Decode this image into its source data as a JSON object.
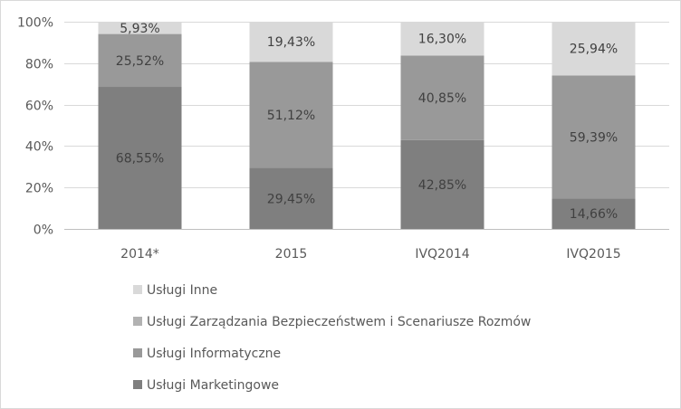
{
  "chart_data": {
    "type": "bar",
    "stacked": true,
    "percent": true,
    "categories": [
      "2014*",
      "2015",
      "IVQ2014",
      "IVQ2015"
    ],
    "series": [
      {
        "name": "Usługi Marketingowe",
        "color": "#7f7f7f",
        "values": [
          68.55,
          29.45,
          42.85,
          14.66
        ],
        "labels": [
          "68,55%",
          "29,45%",
          "42,85%",
          "14,66%"
        ]
      },
      {
        "name": "Usługi Informatyczne",
        "color": "#999999",
        "values": [
          25.52,
          51.12,
          40.85,
          59.39
        ],
        "labels": [
          "25,52%",
          "51,12%",
          "40,85%",
          "59,39%"
        ]
      },
      {
        "name": "Usługi Zarządzania Bezpieczeństwem i Scenariusze Rozmów",
        "color": "#b2b2b2",
        "values": [
          0,
          0,
          0,
          0
        ],
        "labels": [
          "",
          "",
          "",
          ""
        ]
      },
      {
        "name": "Usługi Inne",
        "color": "#d9d9d9",
        "values": [
          5.93,
          19.43,
          16.3,
          25.94
        ],
        "labels": [
          "5,93%",
          "19,43%",
          "16,30%",
          "25,94%"
        ]
      }
    ],
    "yticks": [
      "0%",
      "20%",
      "40%",
      "60%",
      "80%",
      "100%"
    ],
    "ylim": [
      0,
      100
    ],
    "grid": true,
    "legend_position": "bottom",
    "legend_order": [
      "Usługi Inne",
      "Usługi Zarządzania Bezpieczeństwem i Scenariusze Rozmów",
      "Usługi Informatyczne",
      "Usługi Marketingowe"
    ]
  }
}
